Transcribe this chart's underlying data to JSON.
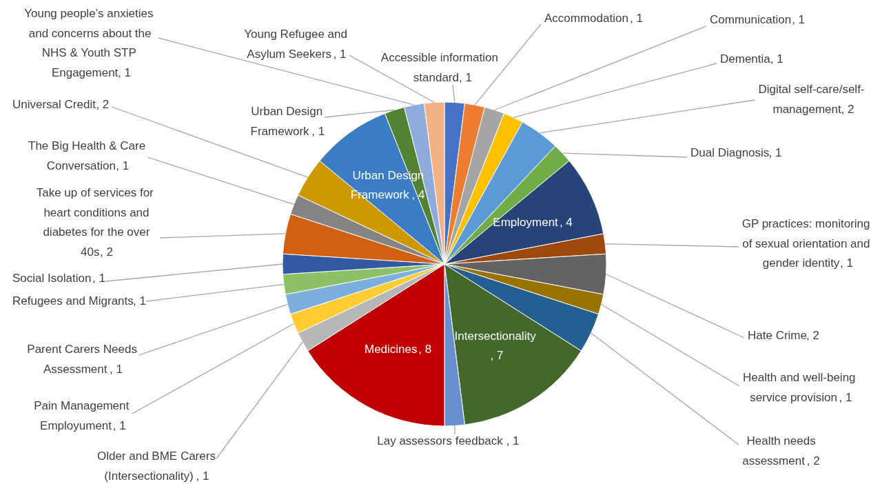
{
  "chart_data": {
    "type": "pie",
    "categories": [
      "Accessible information standard",
      "Accommodation",
      "Communication",
      "Dementia",
      "Digital self-care/self-management",
      "Dual Diagnosis",
      "Employment",
      "GP practices: monitoring of sexual orientation and gender identity",
      "Hate Crime",
      "Health and well-being service provision ",
      "Health needs assessment",
      "Intersectionality",
      "Lay assessors feedback",
      "Medicines",
      "Older and BME Carers (Intersectionality)",
      "Pain Management Employument",
      "Parent Carers Needs Assessment",
      "Refugees and Migrants",
      "Social Isolation",
      "Take up of services for heart conditions and diabetes for the over 40s",
      "The Big Health & Care Conversation",
      "Universal Credit",
      "Urban Design Framework",
      "Urban Design Framework ",
      "Young people’s anxieties and concerns about the NHS & Youth STP Engagement ",
      "Young Refugee and Asylum Seekers"
    ],
    "values": [
      1,
      1,
      1,
      1,
      2,
      1,
      4,
      1,
      2,
      1,
      2,
      7,
      1,
      8,
      1,
      1,
      1,
      1,
      1,
      2,
      1,
      2,
      4,
      1,
      1,
      1
    ],
    "value_labels": [
      ", 1",
      ", 1",
      ", 1",
      ", 1",
      ", 2",
      ", 1",
      ", 4",
      ", 1",
      ", 2",
      ", 1",
      ", 2",
      ", 7",
      ", 1",
      ", 8",
      ", 1",
      ", 1",
      ", 1",
      ", 1",
      ", 1",
      ", 2",
      ", 1",
      ", 2",
      ", 4",
      ", 1",
      ", 1",
      ", 1"
    ],
    "colors": [
      "#4472c4",
      "#ed7d31",
      "#a5a5a5",
      "#ffc000",
      "#5b9bd5",
      "#70ad47",
      "#264478",
      "#9e480e",
      "#636363",
      "#997300",
      "#255e91",
      "#43682b",
      "#698ed0",
      "#c00000",
      "#b7b7b7",
      "#ffcd33",
      "#7cafdd",
      "#8cc168",
      "#335aa1",
      "#d26012",
      "#848484",
      "#cc9a00",
      "#3a7dc4",
      "#548235",
      "#8faadc",
      "#f4b183"
    ]
  }
}
